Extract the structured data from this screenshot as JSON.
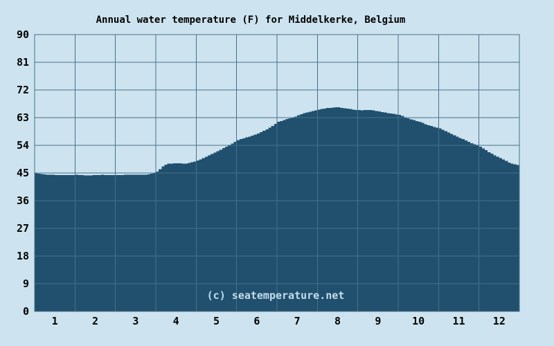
{
  "page": {
    "background_color": "#cde3ef"
  },
  "colors": {
    "background": "#cde3ef",
    "area_fill": "#20506e",
    "gridline": "#46708a",
    "frame": "#46708a",
    "text": "#000000",
    "watermark": "#c3dcea"
  },
  "chart_data": {
    "type": "area",
    "title": "Annual water temperature (F) for Middelkerke, Belgium",
    "watermark": "(c) seatemperature.net",
    "xlabel": "",
    "ylabel": "",
    "x_unit": "month",
    "xlim": [
      0,
      12
    ],
    "ylim": [
      0,
      90
    ],
    "xticks": [
      1,
      2,
      3,
      4,
      5,
      6,
      7,
      8,
      9,
      10,
      11,
      12
    ],
    "yticks": [
      0,
      9,
      18,
      27,
      36,
      45,
      54,
      63,
      72,
      81,
      90
    ],
    "grid": true,
    "legend": false,
    "categories": [
      1,
      2,
      3,
      4,
      5,
      6,
      7,
      8,
      9,
      10,
      11,
      12
    ],
    "monthly_avg_F": [
      44.4,
      44.3,
      44.5,
      48.1,
      52.1,
      57.8,
      63.2,
      66.3,
      65.2,
      61.6,
      56.4,
      49.8
    ],
    "profile_points": [
      [
        0.0,
        45.0
      ],
      [
        0.1,
        44.7
      ],
      [
        0.35,
        44.4
      ],
      [
        0.8,
        44.3
      ],
      [
        1.0,
        44.4
      ],
      [
        1.3,
        44.2
      ],
      [
        1.6,
        44.4
      ],
      [
        2.0,
        44.3
      ],
      [
        2.4,
        44.5
      ],
      [
        2.7,
        44.4
      ],
      [
        2.92,
        44.9
      ],
      [
        3.0,
        45.4
      ],
      [
        3.12,
        46.9
      ],
      [
        3.25,
        48.0
      ],
      [
        3.5,
        48.2
      ],
      [
        3.7,
        48.0
      ],
      [
        3.9,
        48.6
      ],
      [
        4.0,
        49.0
      ],
      [
        4.25,
        50.5
      ],
      [
        4.5,
        52.1
      ],
      [
        4.75,
        53.8
      ],
      [
        5.0,
        55.7
      ],
      [
        5.25,
        56.7
      ],
      [
        5.5,
        57.8
      ],
      [
        5.75,
        59.4
      ],
      [
        6.0,
        61.6
      ],
      [
        6.2,
        62.5
      ],
      [
        6.4,
        63.2
      ],
      [
        6.6,
        64.3
      ],
      [
        6.8,
        65.0
      ],
      [
        7.0,
        65.6
      ],
      [
        7.2,
        66.1
      ],
      [
        7.45,
        66.4
      ],
      [
        7.7,
        66.0
      ],
      [
        7.9,
        65.5
      ],
      [
        8.1,
        65.4
      ],
      [
        8.3,
        65.5
      ],
      [
        8.5,
        65.0
      ],
      [
        8.75,
        64.4
      ],
      [
        9.0,
        63.9
      ],
      [
        9.25,
        62.6
      ],
      [
        9.5,
        61.6
      ],
      [
        9.75,
        60.4
      ],
      [
        10.0,
        59.5
      ],
      [
        10.25,
        57.9
      ],
      [
        10.5,
        56.4
      ],
      [
        10.75,
        54.9
      ],
      [
        11.0,
        53.6
      ],
      [
        11.25,
        51.5
      ],
      [
        11.5,
        49.8
      ],
      [
        11.75,
        48.2
      ],
      [
        12.0,
        47.4
      ]
    ]
  }
}
